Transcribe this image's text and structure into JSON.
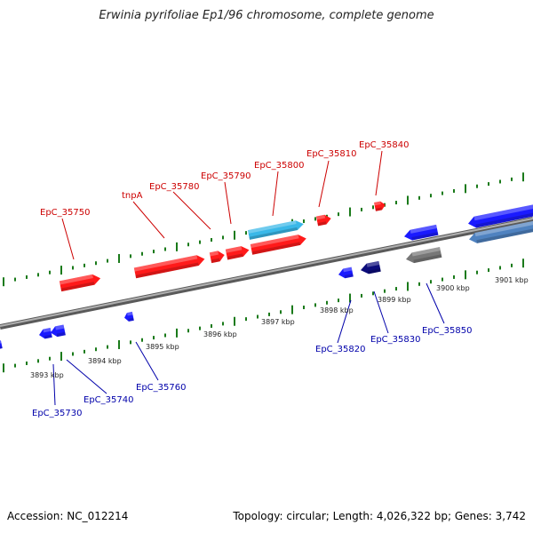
{
  "title": "Erwinia pyrifoliae Ep1/96 chromosome, complete genome",
  "footer": {
    "accession": "Accession: NC_012214",
    "topology": "Topology: circular; Length: 4,026,322 bp; Genes: 3,742"
  },
  "colors": {
    "forward_gene": "#ff1a1a",
    "reverse_gene": "#1a1aff",
    "forward_label": "#cc0000",
    "reverse_label": "#0000aa",
    "backbone": "#888888",
    "tick": "#1a7a1a",
    "rna_gene": "#3ab8e8",
    "dark_gene": "#0b0b7a",
    "grey_gene": "#777777",
    "steel_gene": "#4f82c0"
  },
  "kbp_ticks": [
    "3893 kbp",
    "3894 kbp",
    "3895 kbp",
    "3896 kbp",
    "3897 kbp",
    "3898 kbp",
    "3899 kbp",
    "3900 kbp",
    "3901 kbp"
  ],
  "forward_labels": [
    "EpC_35750",
    "tnpA",
    "EpC_35780",
    "EpC_35790",
    "EpC_35800",
    "EpC_35810",
    "EpC_35840"
  ],
  "reverse_labels": [
    "EpC_35730",
    "EpC_35740",
    "EpC_35760",
    "EpC_35820",
    "EpC_35830",
    "EpC_35850"
  ]
}
